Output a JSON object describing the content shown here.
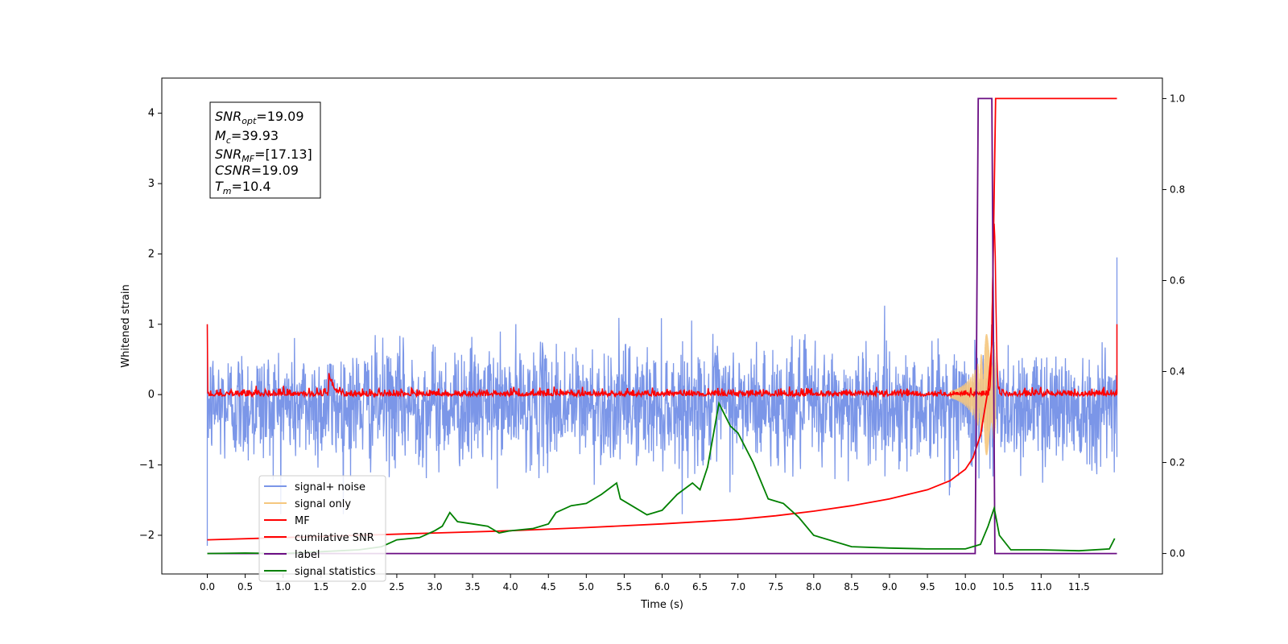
{
  "chart_data": {
    "type": "line",
    "xlabel": "Time (s)",
    "ylabel": "Whitened strain",
    "xlim": [
      -0.6,
      12.6
    ],
    "ylim": [
      -2.55,
      4.5
    ],
    "y2lim": [
      -0.045,
      1.045
    ],
    "x_ticks": [
      0.0,
      0.5,
      1.0,
      1.5,
      2.0,
      2.5,
      3.0,
      3.5,
      4.0,
      4.5,
      5.0,
      5.5,
      6.0,
      6.5,
      7.0,
      7.5,
      8.0,
      8.5,
      9.0,
      9.5,
      10.0,
      10.5,
      11.0,
      11.5
    ],
    "x_tick_labels": [
      "0.0",
      "0.5",
      "1.0",
      "1.5",
      "2.0",
      "2.5",
      "3.0",
      "3.5",
      "4.0",
      "4.5",
      "5.0",
      "5.5",
      "6.0",
      "6.5",
      "7.0",
      "7.5",
      "8.0",
      "8.5",
      "9.0",
      "9.5",
      "10.0",
      "10.5",
      "11.0",
      "11.5"
    ],
    "y_ticks": [
      -2,
      -1,
      0,
      1,
      2,
      3,
      4
    ],
    "y_tick_labels": [
      "−2",
      "−1",
      "0",
      "1",
      "2",
      "3",
      "4"
    ],
    "y2_ticks": [
      0.0,
      0.2,
      0.4,
      0.6,
      0.8,
      1.0
    ],
    "y2_tick_labels": [
      "0.0",
      "0.2",
      "0.4",
      "0.6",
      "0.8",
      "1.0"
    ],
    "grid": false,
    "legend_position": "lower-left",
    "info_box": {
      "snr_opt": {
        "base": "SNR",
        "sub": "opt",
        "value": "=19.09"
      },
      "mc": {
        "base": "M",
        "sub": "c",
        "value": "=39.93"
      },
      "snr_mf": {
        "base": "SNR",
        "sub": "MF",
        "value": "=[17.13]"
      },
      "csnr": {
        "base": "CSNR",
        "sub": "",
        "value": "=19.09"
      },
      "tm": {
        "base": "T",
        "sub": "m",
        "value": "=10.4"
      }
    },
    "series": [
      {
        "name": "signal+ noise",
        "color": "#7b96e8",
        "axis": "left",
        "noise_amplitude": 0.75,
        "x_range": [
          0.0,
          12.0
        ]
      },
      {
        "name": "signal only",
        "color": "#f5c77e",
        "axis": "left",
        "peak_time": 10.38,
        "peak_amplitude": 1.6
      },
      {
        "name": "MF",
        "color": "#ff0000",
        "axis": "left",
        "peak_time": 10.38,
        "peak_value": 2.4,
        "x_range": [
          0.0,
          12.0
        ]
      },
      {
        "name": "cumilative SNR",
        "color": "#ff0000",
        "axis": "right",
        "x": [
          0.0,
          1.0,
          2.0,
          3.0,
          4.0,
          5.0,
          6.0,
          7.0,
          7.5,
          8.0,
          8.5,
          9.0,
          9.5,
          9.8,
          10.0,
          10.1,
          10.2,
          10.3,
          10.35,
          10.4,
          12.0
        ],
        "values": [
          0.03,
          0.035,
          0.04,
          0.045,
          0.05,
          0.057,
          0.065,
          0.075,
          0.083,
          0.093,
          0.105,
          0.12,
          0.14,
          0.16,
          0.185,
          0.21,
          0.26,
          0.36,
          0.46,
          1.0,
          1.0
        ]
      },
      {
        "name": "label",
        "color": "#6a0d83",
        "axis": "right",
        "x": [
          0.0,
          10.13,
          10.17,
          10.35,
          10.39,
          12.0
        ],
        "values": [
          0.0,
          0.0,
          1.0,
          1.0,
          0.0,
          0.0
        ]
      },
      {
        "name": "signal statistics",
        "color": "#008000",
        "axis": "right",
        "x": [
          0.0,
          0.5,
          1.0,
          1.5,
          2.0,
          2.3,
          2.5,
          2.8,
          3.0,
          3.1,
          3.2,
          3.3,
          3.5,
          3.7,
          3.85,
          4.0,
          4.3,
          4.5,
          4.6,
          4.8,
          5.0,
          5.2,
          5.4,
          5.45,
          5.6,
          5.8,
          6.0,
          6.2,
          6.4,
          6.5,
          6.6,
          6.75,
          6.9,
          7.0,
          7.2,
          7.4,
          7.5,
          7.6,
          7.8,
          8.0,
          8.5,
          9.0,
          9.5,
          10.0,
          10.2,
          10.3,
          10.38,
          10.45,
          10.6,
          11.0,
          11.5,
          11.9,
          11.97
        ],
        "values": [
          0.0,
          0.001,
          0.0,
          0.004,
          0.008,
          0.015,
          0.03,
          0.035,
          0.05,
          0.06,
          0.09,
          0.07,
          0.065,
          0.06,
          0.045,
          0.05,
          0.055,
          0.065,
          0.09,
          0.105,
          0.11,
          0.13,
          0.155,
          0.12,
          0.105,
          0.085,
          0.095,
          0.13,
          0.155,
          0.14,
          0.19,
          0.33,
          0.28,
          0.265,
          0.2,
          0.12,
          0.115,
          0.11,
          0.08,
          0.04,
          0.015,
          0.012,
          0.01,
          0.01,
          0.02,
          0.06,
          0.1,
          0.04,
          0.008,
          0.008,
          0.006,
          0.01,
          0.033
        ]
      }
    ]
  }
}
